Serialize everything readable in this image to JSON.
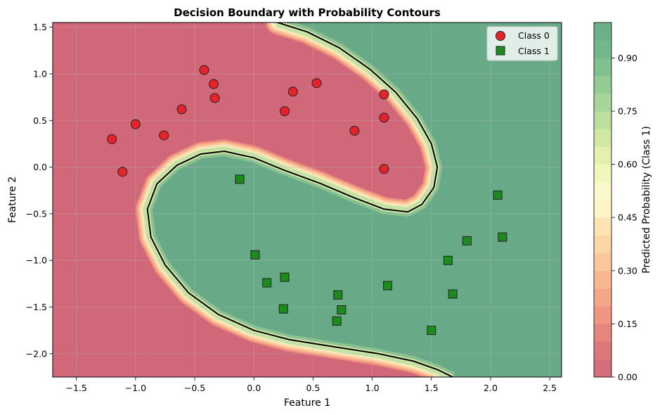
{
  "chart_data": {
    "type": "scatter",
    "title": "Decision Boundary with Probability Contours",
    "xlabel": "Feature 1",
    "ylabel": "Feature 2",
    "xlim": [
      -1.7,
      2.6
    ],
    "ylim": [
      -2.25,
      1.55
    ],
    "xticks": [
      -1.5,
      -1.0,
      -0.5,
      0.0,
      0.5,
      1.0,
      1.5,
      2.0,
      2.5
    ],
    "yticks": [
      -2.0,
      -1.5,
      -1.0,
      -0.5,
      0.0,
      0.5,
      1.0,
      1.5
    ],
    "xtick_labels": [
      "−1.5",
      "−1.0",
      "−0.5",
      "0.0",
      "0.5",
      "1.0",
      "1.5",
      "2.0",
      "2.5"
    ],
    "ytick_labels": [
      "−2.0",
      "−1.5",
      "−1.0",
      "−0.5",
      "0.0",
      "0.5",
      "1.0",
      "1.5"
    ],
    "grid": true,
    "legend_position": "top-right",
    "series": [
      {
        "name": "Class 0",
        "marker": "circle",
        "color": "#e8222a",
        "points": [
          [
            -1.2,
            0.3
          ],
          [
            -1.11,
            -0.05
          ],
          [
            -1.0,
            0.46
          ],
          [
            -0.76,
            0.34
          ],
          [
            -0.61,
            0.62
          ],
          [
            -0.42,
            1.04
          ],
          [
            -0.34,
            0.89
          ],
          [
            -0.33,
            0.74
          ],
          [
            0.26,
            0.6
          ],
          [
            0.33,
            0.81
          ],
          [
            0.53,
            0.9
          ],
          [
            0.85,
            0.39
          ],
          [
            1.1,
            0.78
          ],
          [
            1.1,
            0.53
          ],
          [
            1.1,
            -0.02
          ]
        ]
      },
      {
        "name": "Class 1",
        "marker": "square",
        "color": "#1d8a1d",
        "points": [
          [
            -0.12,
            -0.13
          ],
          [
            0.01,
            -0.94
          ],
          [
            0.11,
            -1.24
          ],
          [
            0.26,
            -1.18
          ],
          [
            0.25,
            -1.52
          ],
          [
            0.71,
            -1.37
          ],
          [
            0.74,
            -1.53
          ],
          [
            0.7,
            -1.65
          ],
          [
            1.13,
            -1.27
          ],
          [
            1.5,
            -1.75
          ],
          [
            1.64,
            -1.0
          ],
          [
            1.68,
            -1.36
          ],
          [
            1.8,
            -0.79
          ],
          [
            2.06,
            -0.3
          ],
          [
            2.1,
            -0.75
          ]
        ]
      }
    ],
    "decision_boundary": {
      "level": 0.5,
      "points": [
        [
          0.2,
          1.55
        ],
        [
          0.45,
          1.45
        ],
        [
          0.72,
          1.28
        ],
        [
          0.98,
          1.05
        ],
        [
          1.2,
          0.8
        ],
        [
          1.38,
          0.52
        ],
        [
          1.5,
          0.25
        ],
        [
          1.55,
          0.0
        ],
        [
          1.52,
          -0.22
        ],
        [
          1.42,
          -0.4
        ],
        [
          1.3,
          -0.48
        ],
        [
          1.1,
          -0.45
        ],
        [
          0.85,
          -0.33
        ],
        [
          0.55,
          -0.17
        ],
        [
          0.25,
          -0.03
        ],
        [
          0.0,
          0.1
        ],
        [
          -0.25,
          0.17
        ],
        [
          -0.45,
          0.14
        ],
        [
          -0.65,
          0.02
        ],
        [
          -0.82,
          -0.18
        ],
        [
          -0.9,
          -0.45
        ],
        [
          -0.87,
          -0.75
        ],
        [
          -0.75,
          -1.05
        ],
        [
          -0.55,
          -1.35
        ],
        [
          -0.3,
          -1.58
        ],
        [
          0.0,
          -1.75
        ],
        [
          0.3,
          -1.85
        ],
        [
          0.7,
          -1.93
        ],
        [
          1.05,
          -2.0
        ],
        [
          1.35,
          -2.08
        ],
        [
          1.55,
          -2.17
        ],
        [
          1.68,
          -2.25
        ]
      ]
    },
    "colorbar": {
      "label": "Predicted Probability (Class 1)",
      "range": [
        0.0,
        1.0
      ],
      "ticks": [
        0.0,
        0.15,
        0.3,
        0.45,
        0.6,
        0.75,
        0.9
      ],
      "tick_labels": [
        "0.00",
        "0.15",
        "0.30",
        "0.45",
        "0.60",
        "0.75",
        "0.90"
      ],
      "levels": 20,
      "colormap": "RdYlGn",
      "alpha": 0.6
    },
    "colors": {
      "low_region": "#d1687a",
      "high_region": "#68aa88",
      "boundary_line": "#000000",
      "grid": "#bcbcbc"
    }
  }
}
